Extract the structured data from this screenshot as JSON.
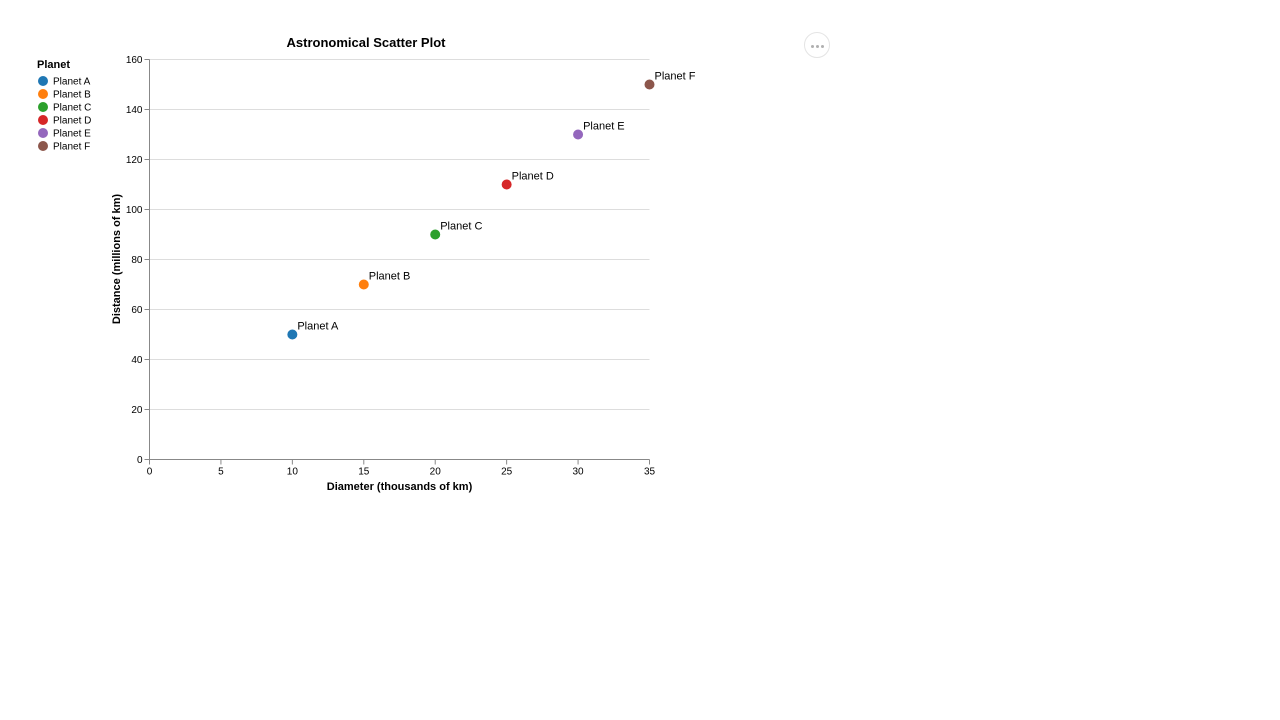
{
  "menu": {
    "icon": "more-horizontal-icon"
  },
  "chart_data": {
    "type": "scatter",
    "title": "Astronomical Scatter Plot",
    "xlabel": "Diameter (thousands of km)",
    "ylabel": "Distance (millions of km)",
    "xlim": [
      0,
      35
    ],
    "ylim": [
      0,
      160
    ],
    "x_ticks": [
      0,
      5,
      10,
      15,
      20,
      25,
      30,
      35
    ],
    "y_ticks": [
      0,
      20,
      40,
      60,
      80,
      100,
      120,
      140,
      160
    ],
    "grid": "horizontal",
    "legend": {
      "title": "Planet",
      "placement": "left"
    },
    "series": [
      {
        "name": "Planet A",
        "x": 10,
        "y": 50,
        "label": "Planet A",
        "color": "#1f77b4"
      },
      {
        "name": "Planet B",
        "x": 15,
        "y": 70,
        "label": "Planet B",
        "color": "#ff7f0e"
      },
      {
        "name": "Planet C",
        "x": 20,
        "y": 90,
        "label": "Planet C",
        "color": "#2ca02c"
      },
      {
        "name": "Planet D",
        "x": 25,
        "y": 110,
        "label": "Planet D",
        "color": "#d62728"
      },
      {
        "name": "Planet E",
        "x": 30,
        "y": 130,
        "label": "Planet E",
        "color": "#9467bd"
      },
      {
        "name": "Planet F",
        "x": 35,
        "y": 150,
        "label": "Planet F",
        "color": "#8c564b"
      }
    ]
  }
}
